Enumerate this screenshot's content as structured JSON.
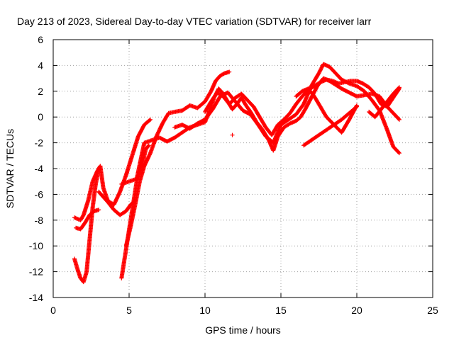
{
  "chart_data": {
    "type": "scatter",
    "title": "Day 213 of 2023, Sidereal Day-to-day VTEC variation (SDTVAR) for receiver larr",
    "xlabel": "GPS time / hours",
    "ylabel": "SDTVAR / TECUs",
    "xlim": [
      0,
      25
    ],
    "ylim": [
      -14,
      6
    ],
    "xticks": [
      "0",
      "5",
      "10",
      "15",
      "20",
      "25"
    ],
    "yticks": [
      "-14",
      "-12",
      "-10",
      "-8",
      "-6",
      "-4",
      "-2",
      "0",
      "2",
      "4",
      "6"
    ],
    "grid": true,
    "marker": "+",
    "color": "#ff0000",
    "series": [
      {
        "x": [
          1.4,
          1.6,
          1.8,
          2.0,
          2.3,
          2.6,
          2.9,
          3.1,
          3.3,
          3.6,
          4.0,
          4.4,
          4.8,
          5.2,
          5.6,
          6.0,
          6.4
        ],
        "y": [
          -7.8,
          -7.9,
          -8.0,
          -7.6,
          -6.5,
          -5.0,
          -4.2,
          -3.8,
          -5.5,
          -6.5,
          -6.8,
          -5.8,
          -4.5,
          -3.0,
          -1.5,
          -0.6,
          -0.2
        ]
      },
      {
        "x": [
          1.4,
          1.6,
          1.8,
          2.0,
          2.2,
          2.4,
          2.6,
          2.8,
          3.0
        ],
        "y": [
          -11.0,
          -11.8,
          -12.5,
          -12.8,
          -12.0,
          -9.5,
          -7.0,
          -5.2,
          -4.0
        ]
      },
      {
        "x": [
          1.5,
          1.8,
          2.1,
          2.4,
          2.7,
          3.0
        ],
        "y": [
          -8.6,
          -8.7,
          -8.2,
          -7.6,
          -7.3,
          -7.2
        ]
      },
      {
        "x": [
          3.0,
          3.3,
          3.6,
          4.0,
          4.4,
          4.8,
          5.1,
          5.4
        ],
        "y": [
          -5.8,
          -6.2,
          -6.6,
          -7.2,
          -7.6,
          -7.3,
          -6.8,
          -6.5
        ]
      },
      {
        "x": [
          4.5,
          4.7,
          4.9,
          5.1,
          5.3,
          5.5,
          5.7,
          5.9,
          6.1,
          6.3
        ],
        "y": [
          -12.5,
          -11.0,
          -9.5,
          -8.0,
          -6.5,
          -5.0,
          -4.2,
          -3.5,
          -2.5,
          -2.2
        ]
      },
      {
        "x": [
          4.8,
          5.1,
          5.4,
          5.7,
          6.0,
          6.4,
          6.8,
          7.2,
          7.6,
          8.0,
          8.5,
          9.0,
          9.5,
          10.0,
          10.4,
          10.7,
          11.0,
          11.3,
          11.6
        ],
        "y": [
          -10.0,
          -8.5,
          -6.8,
          -5.0,
          -3.8,
          -2.8,
          -1.5,
          -0.5,
          0.3,
          0.4,
          0.5,
          0.9,
          0.7,
          1.2,
          2.0,
          2.8,
          3.2,
          3.4,
          3.5
        ]
      },
      {
        "x": [
          4.5,
          5.0,
          5.5,
          6.0,
          6.5,
          7.0,
          7.5,
          8.0,
          8.5,
          9.0,
          9.5,
          10.0,
          10.3,
          10.6,
          10.9,
          11.2,
          11.5,
          11.8,
          12.1,
          12.4,
          12.7,
          13.0,
          13.4,
          13.8,
          14.2,
          14.5,
          14.8,
          15.2,
          15.6,
          16.0,
          16.3,
          16.6,
          17.0,
          17.4,
          17.8,
          18.2,
          18.6,
          19.0,
          19.5,
          20.0,
          20.5,
          21.0,
          21.5,
          22.0,
          22.4,
          22.8
        ],
        "y": [
          -5.2,
          -5.0,
          -4.8,
          -2.0,
          -1.8,
          -1.6,
          -1.9,
          -1.6,
          -1.2,
          -0.8,
          -0.6,
          -0.4,
          0.5,
          1.5,
          2.2,
          1.8,
          1.2,
          0.6,
          1.0,
          1.5,
          0.9,
          0.4,
          -0.4,
          -1.0,
          -1.8,
          -2.6,
          -1.5,
          -0.8,
          -0.5,
          -0.3,
          0.0,
          0.6,
          1.5,
          2.4,
          3.0,
          2.8,
          2.5,
          2.2,
          1.9,
          1.6,
          1.7,
          1.8,
          1.6,
          0.8,
          0.3,
          -0.2
        ]
      },
      {
        "x": [
          8.0,
          8.5,
          9.0,
          9.5,
          10.0,
          10.5,
          11.0,
          11.5,
          12.0,
          12.5,
          13.0,
          13.5,
          14.0,
          14.5,
          15.0,
          15.5,
          16.0,
          16.5,
          17.0,
          17.5,
          17.8,
          18.2,
          18.6,
          19.0,
          19.5,
          20.0,
          20.5,
          21.0,
          21.5,
          22.0,
          22.4,
          22.8
        ],
        "y": [
          -0.8,
          -0.6,
          -0.9,
          -0.5,
          -0.2,
          0.6,
          1.6,
          1.9,
          1.2,
          0.5,
          0.2,
          -0.6,
          -1.5,
          -2.0,
          -0.6,
          -0.2,
          0.2,
          1.0,
          2.4,
          3.4,
          4.1,
          3.9,
          3.4,
          2.9,
          2.6,
          2.4,
          2.0,
          1.3,
          0.5,
          -1.0,
          -2.3,
          -2.8
        ]
      },
      {
        "x": [
          10.0,
          10.4,
          10.8,
          11.2,
          11.6,
          12.0,
          12.4,
          12.8,
          13.2,
          13.6,
          14.0,
          14.4,
          14.8,
          15.2,
          15.6,
          16.0,
          16.4,
          16.8,
          17.2,
          17.6,
          18.0,
          18.4,
          18.8,
          19.2,
          19.6,
          20.0,
          20.4,
          20.8,
          21.2,
          21.6,
          22.0,
          22.4,
          22.8
        ],
        "y": [
          0.4,
          1.2,
          1.9,
          1.6,
          1.0,
          1.5,
          1.8,
          1.3,
          0.8,
          0.0,
          -0.8,
          -1.4,
          -0.6,
          -0.2,
          0.3,
          1.0,
          1.6,
          2.1,
          2.4,
          2.7,
          2.9,
          2.8,
          2.6,
          2.7,
          2.8,
          2.8,
          2.6,
          2.3,
          1.8,
          1.0,
          0.8,
          1.5,
          2.2
        ]
      },
      {
        "x": [
          16.0,
          16.4,
          16.8,
          17.2,
          17.6,
          18.0,
          18.5,
          19.0,
          19.5,
          20.0
        ],
        "y": [
          1.6,
          2.0,
          2.2,
          1.6,
          0.8,
          0.0,
          -0.6,
          -1.2,
          -0.2,
          0.9
        ]
      },
      {
        "x": [
          16.5,
          17.0,
          17.5,
          18.0,
          18.5,
          19.0,
          19.5,
          20.0
        ],
        "y": [
          -2.2,
          -1.8,
          -1.4,
          -1.0,
          -0.6,
          -0.2,
          0.3,
          0.8
        ]
      },
      {
        "x": [
          20.8,
          21.2,
          21.6,
          22.0,
          22.4,
          22.8
        ],
        "y": [
          0.4,
          0.0,
          0.6,
          1.2,
          1.8,
          2.3
        ]
      },
      {
        "x": [
          11.8
        ],
        "y": [
          -1.4
        ]
      }
    ]
  }
}
